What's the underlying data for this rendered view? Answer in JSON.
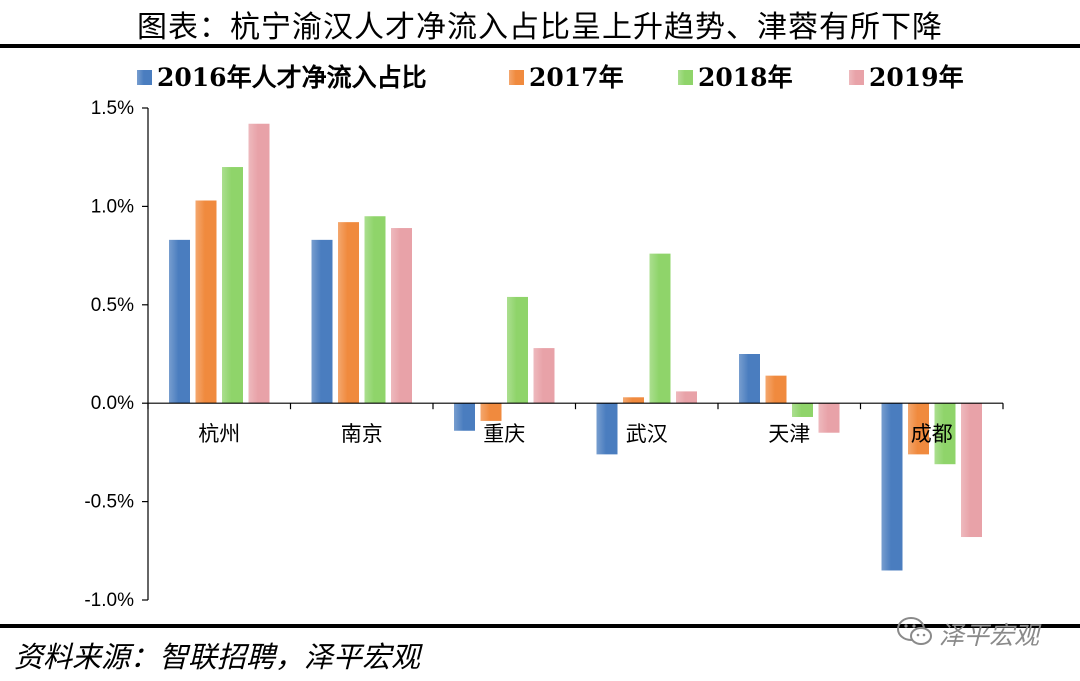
{
  "title": "图表：杭宁渝汉人才净流入占比呈上升趋势、津蓉有所下降",
  "source": "资料来源：智联招聘，泽平宏观",
  "watermark": "泽平宏观",
  "colors": [
    "#4a7dbf",
    "#f08a3e",
    "#8fd46a",
    "#e8a2a8"
  ],
  "chart_data": {
    "type": "bar",
    "title": "",
    "xlabel": "",
    "ylabel": "",
    "categories": [
      "杭州",
      "南京",
      "重庆",
      "武汉",
      "天津",
      "成都"
    ],
    "series": [
      {
        "name": "2016年人才净流入占比",
        "values": [
          0.83,
          0.83,
          -0.14,
          -0.26,
          0.25,
          -0.85
        ]
      },
      {
        "name": "2017年",
        "values": [
          1.03,
          0.92,
          -0.09,
          0.03,
          0.14,
          -0.26
        ]
      },
      {
        "name": "2018年",
        "values": [
          1.2,
          0.95,
          0.54,
          0.76,
          -0.07,
          -0.31
        ]
      },
      {
        "name": "2019年",
        "values": [
          1.42,
          0.89,
          0.28,
          0.06,
          -0.15,
          -0.68
        ]
      }
    ],
    "ylim": [
      -1.0,
      1.5
    ],
    "yticks": [
      "-1.0%",
      "-0.5%",
      "0.0%",
      "0.5%",
      "1.0%",
      "1.5%"
    ],
    "legend": "top",
    "grid": false
  }
}
